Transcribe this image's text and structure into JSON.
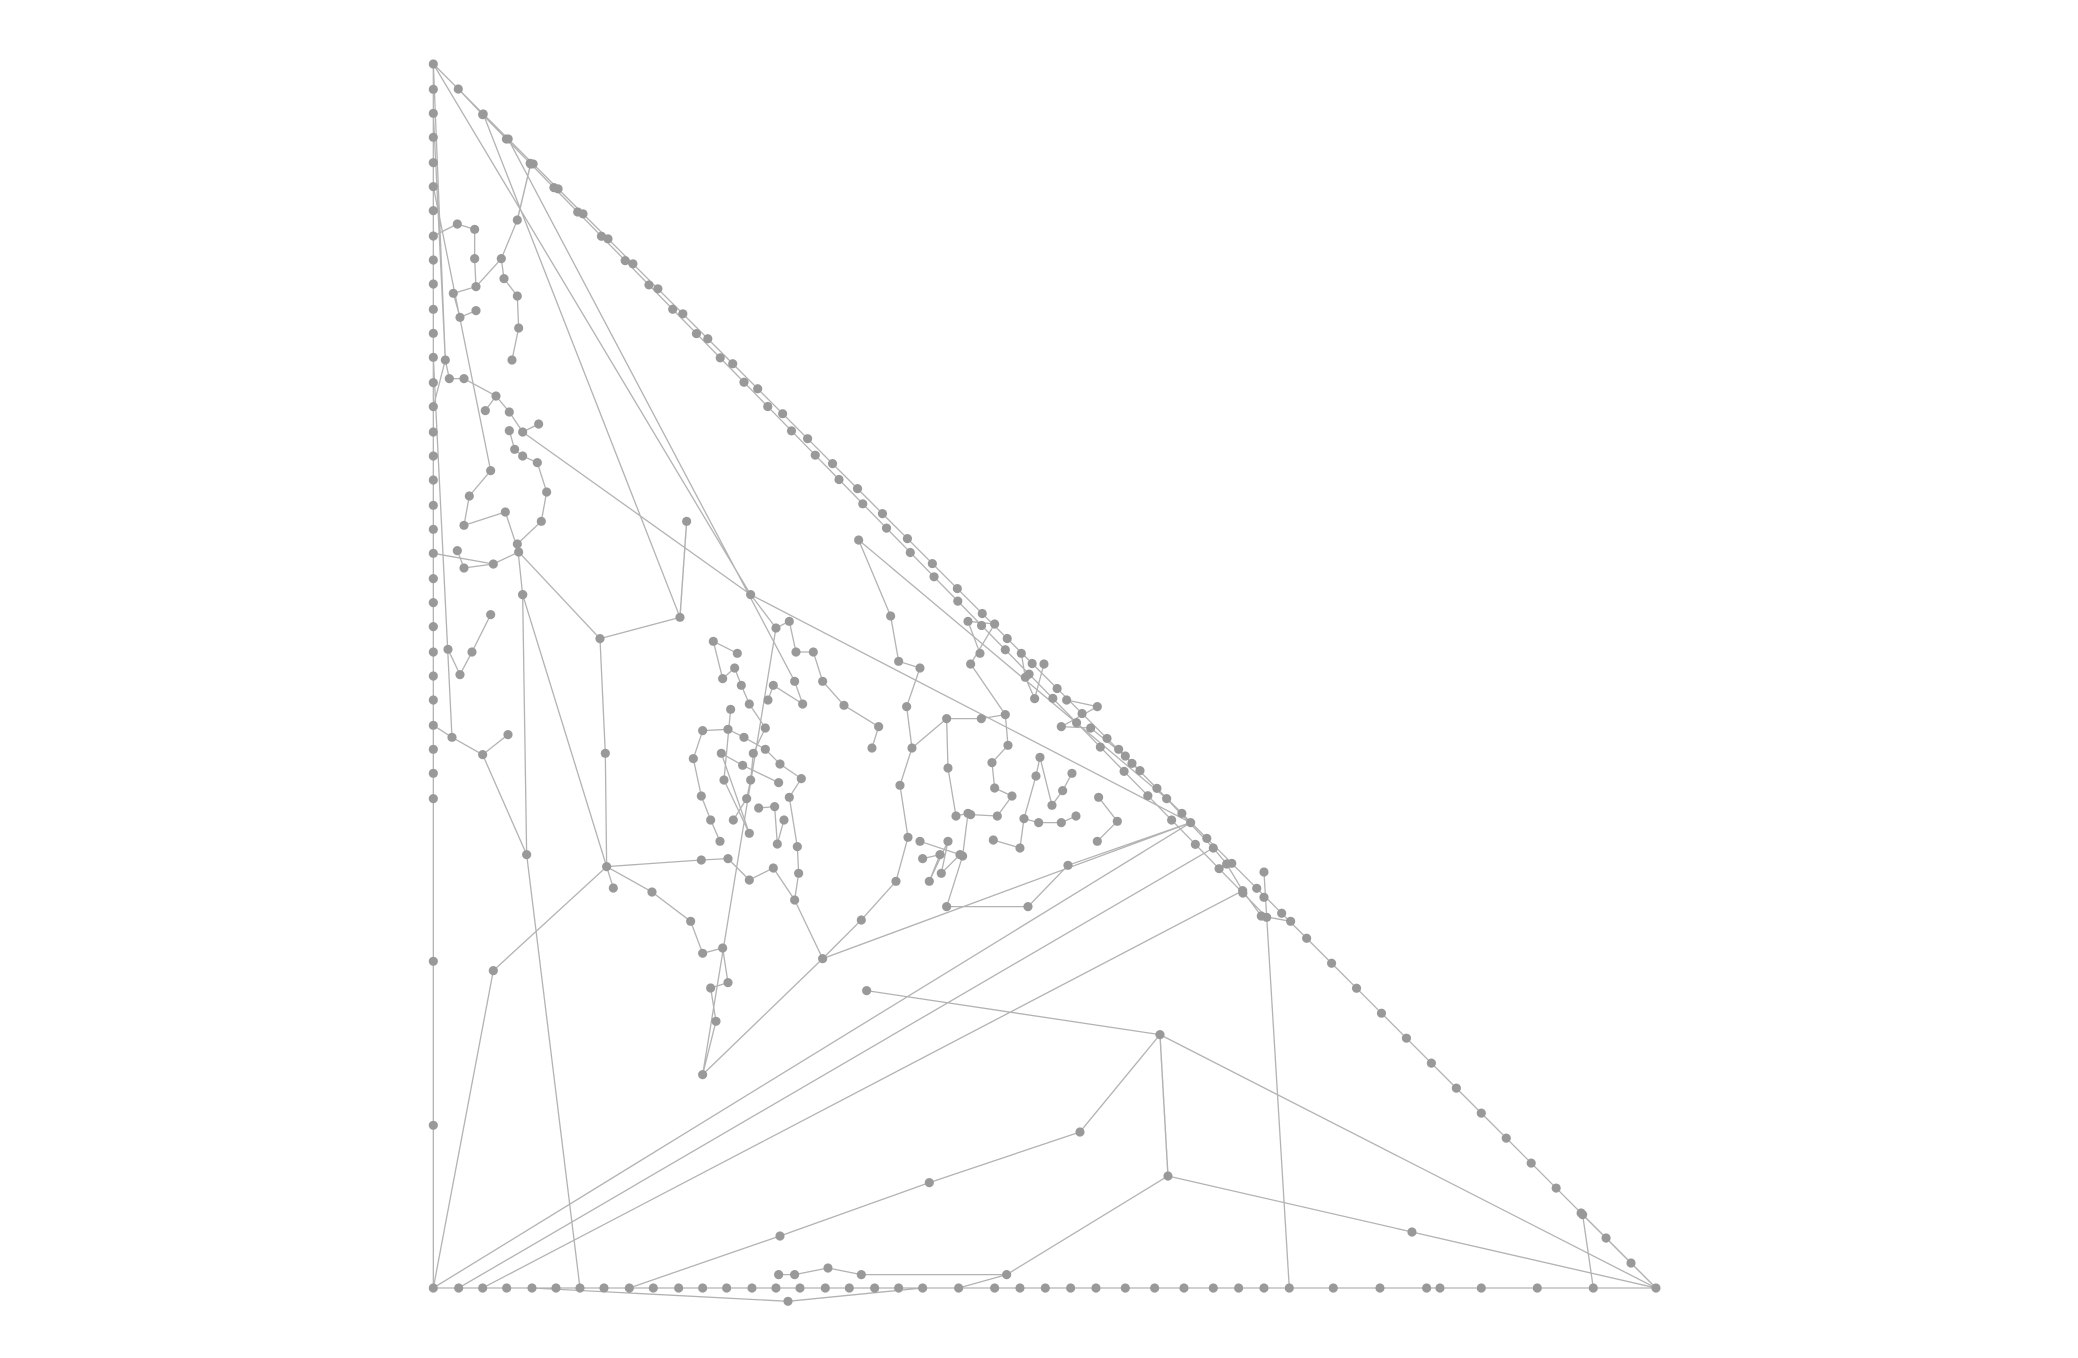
{
  "diagram": {
    "type": "graph",
    "colors": {
      "edge": "#b3b3b3",
      "node": "#999999",
      "background": "#ffffff"
    }
  }
}
